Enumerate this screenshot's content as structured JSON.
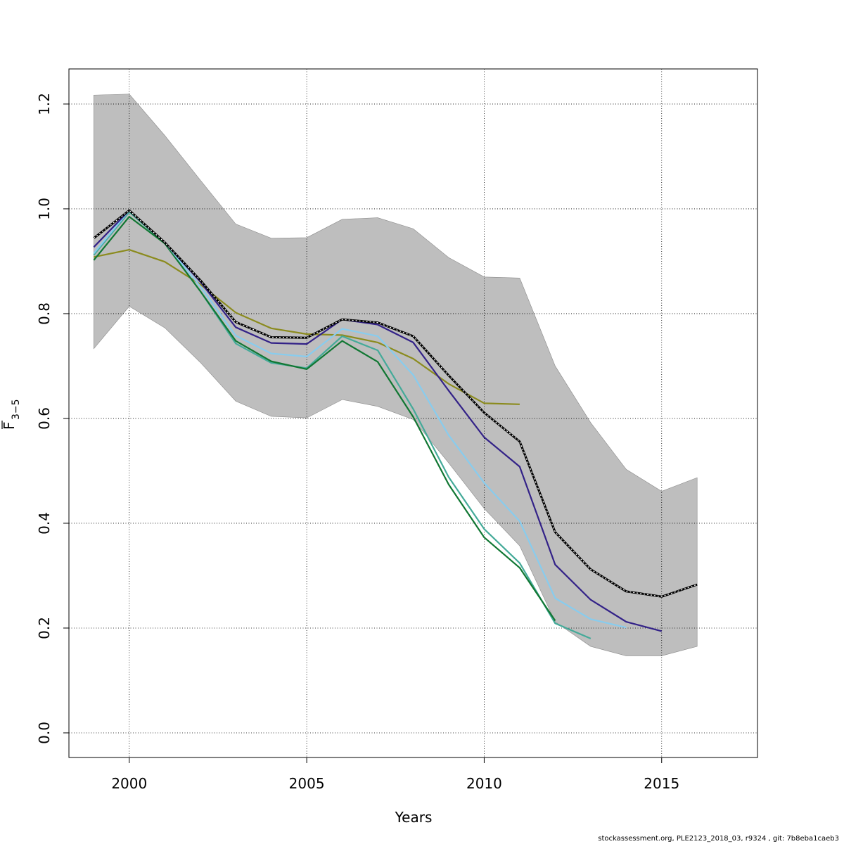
{
  "chart_data": {
    "type": "line",
    "xlabel": "Years",
    "ylabel": {
      "main": "F",
      "sub": "3−5"
    },
    "xlim": [
      1998.3,
      2017.7
    ],
    "ylim": [
      -0.047,
      1.267
    ],
    "x_ticks": [
      2000,
      2005,
      2010,
      2015
    ],
    "y_ticks": [
      0.0,
      0.2,
      0.4,
      0.6,
      0.8,
      1.0,
      1.2
    ],
    "grid": true,
    "band": {
      "color": "#bebebe",
      "x": [
        1999,
        2000,
        2001,
        2002,
        2003,
        2004,
        2005,
        2006,
        2007,
        2008,
        2009,
        2010,
        2011,
        2012,
        2013,
        2014,
        2015,
        2016
      ],
      "upper": [
        1.217,
        1.219,
        1.14,
        1.055,
        0.971,
        0.944,
        0.945,
        0.98,
        0.983,
        0.962,
        0.907,
        0.87,
        0.868,
        0.7,
        0.592,
        0.503,
        0.461,
        0.487
      ],
      "lower": [
        0.733,
        0.814,
        0.773,
        0.707,
        0.633,
        0.604,
        0.601,
        0.636,
        0.623,
        0.598,
        0.515,
        0.428,
        0.357,
        0.212,
        0.165,
        0.147,
        0.147,
        0.165
      ]
    },
    "series": [
      {
        "color": "#8b8b1e",
        "dashed": false,
        "x": [
          1999,
          2000,
          2001,
          2002,
          2003,
          2004,
          2005,
          2006,
          2007,
          2008,
          2009,
          2010,
          2011
        ],
        "values": [
          0.908,
          0.922,
          0.899,
          0.856,
          0.802,
          0.772,
          0.761,
          0.759,
          0.745,
          0.714,
          0.666,
          0.629,
          0.627
        ]
      },
      {
        "color": "#44aa99",
        "dashed": false,
        "x": [
          1999,
          2000,
          2001,
          2002,
          2003,
          2004,
          2005,
          2006,
          2007,
          2008,
          2009,
          2010,
          2011,
          2012,
          2013
        ],
        "values": [
          0.912,
          0.994,
          0.934,
          0.843,
          0.743,
          0.706,
          0.696,
          0.757,
          0.73,
          0.618,
          0.488,
          0.389,
          0.324,
          0.209,
          0.18
        ]
      },
      {
        "color": "#117733",
        "dashed": false,
        "x": [
          1999,
          2000,
          2001,
          2002,
          2003,
          2004,
          2005,
          2006,
          2007,
          2008,
          2009,
          2010,
          2011,
          2012
        ],
        "values": [
          0.902,
          0.985,
          0.934,
          0.843,
          0.748,
          0.709,
          0.694,
          0.748,
          0.708,
          0.603,
          0.474,
          0.373,
          0.315,
          0.214
        ]
      },
      {
        "color": "#88ccee",
        "dashed": false,
        "x": [
          1999,
          2000,
          2001,
          2002,
          2003,
          2004,
          2005,
          2006,
          2007,
          2008,
          2009,
          2010,
          2011,
          2012,
          2013,
          2014
        ],
        "values": [
          0.915,
          0.997,
          0.936,
          0.852,
          0.758,
          0.724,
          0.718,
          0.771,
          0.757,
          0.683,
          0.568,
          0.477,
          0.404,
          0.257,
          0.217,
          0.201
        ]
      },
      {
        "color": "#332288",
        "dashed": false,
        "x": [
          1999,
          2000,
          2001,
          2002,
          2003,
          2004,
          2005,
          2006,
          2007,
          2008,
          2009,
          2010,
          2011,
          2012,
          2013,
          2014,
          2015
        ],
        "values": [
          0.927,
          0.997,
          0.936,
          0.861,
          0.774,
          0.744,
          0.742,
          0.789,
          0.779,
          0.745,
          0.653,
          0.564,
          0.508,
          0.321,
          0.254,
          0.212,
          0.194
        ]
      },
      {
        "color": "#000000",
        "dashed": true,
        "x": [
          1999,
          2000,
          2001,
          2002,
          2003,
          2004,
          2005,
          2006,
          2007,
          2008,
          2009,
          2010,
          2011,
          2012,
          2013,
          2014,
          2015,
          2016
        ],
        "values": [
          0.944,
          0.997,
          0.936,
          0.864,
          0.784,
          0.755,
          0.754,
          0.789,
          0.783,
          0.757,
          0.682,
          0.611,
          0.556,
          0.383,
          0.312,
          0.27,
          0.26,
          0.283
        ]
      }
    ]
  },
  "footer": "stockassessment.org, PLE2123_2018_03, r9324 , git: 7b8eba1caeb3"
}
